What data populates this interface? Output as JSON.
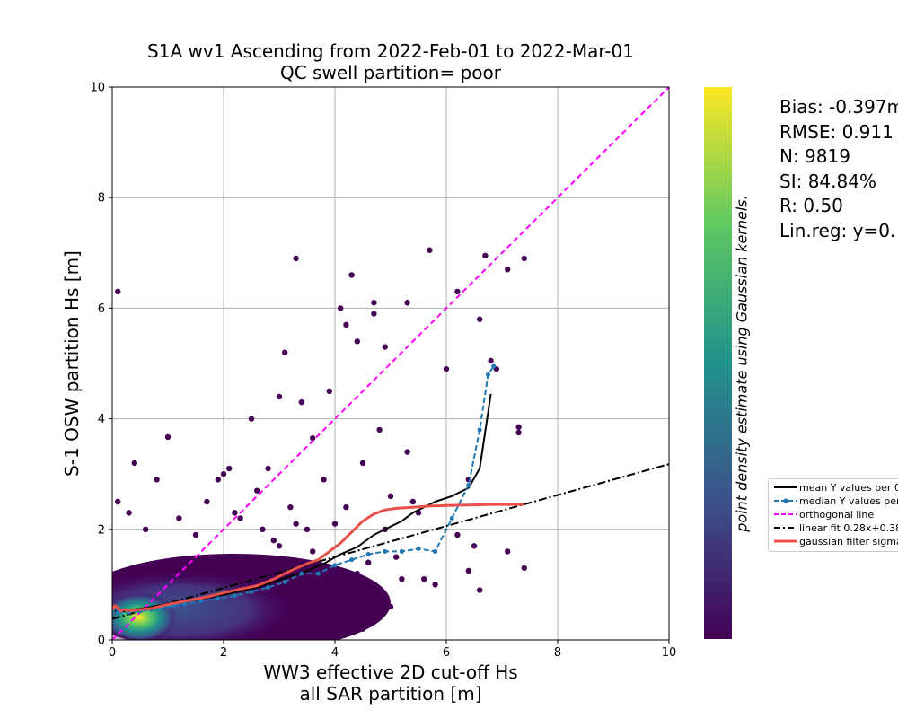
{
  "chart_data": {
    "type": "scatter",
    "title_lines": [
      "S1A wv1 Ascending from 2022-Feb-01 to 2022-Mar-01",
      "QC swell partition= poor"
    ],
    "xlabel_lines": [
      "WW3 effective 2D cut-off Hs",
      "all SAR partition [m]"
    ],
    "ylabel": "S-1 OSW partition Hs [m]",
    "xlim": [
      0,
      10
    ],
    "ylim": [
      0,
      10
    ],
    "xticks": [
      "0",
      "2",
      "4",
      "6",
      "8",
      "10"
    ],
    "yticks": [
      "0",
      "2",
      "4",
      "6",
      "8",
      "10"
    ],
    "grid": true,
    "colorbar_label": "point density estimate using Gaussian kernels.",
    "colormap": [
      "#440154",
      "#3b528b",
      "#21918c",
      "#5ec962",
      "#fde725"
    ],
    "stats": [
      "Bias: -0.397m",
      "RMSE: 0.911",
      "N: 9819",
      "SI: 84.84%",
      "R: 0.50",
      "Lin.reg: y=0."
    ],
    "legend_placement": "right, outside plot",
    "series": [
      {
        "name": "mean Y values per 0",
        "style": "solid",
        "color": "#000000",
        "x": [
          0.05,
          0.2,
          0.4,
          0.6,
          0.8,
          1.0,
          1.2,
          1.5,
          1.8,
          2.0,
          2.3,
          2.6,
          2.9,
          3.2,
          3.5,
          3.8,
          4.1,
          4.4,
          4.7,
          5.0,
          5.2,
          5.4,
          5.8,
          6.1,
          6.4,
          6.6,
          6.8
        ],
        "y": [
          0.52,
          0.52,
          0.55,
          0.58,
          0.62,
          0.65,
          0.68,
          0.73,
          0.78,
          0.82,
          0.88,
          0.95,
          1.05,
          1.15,
          1.25,
          1.38,
          1.55,
          1.68,
          1.9,
          2.05,
          2.15,
          2.3,
          2.5,
          2.6,
          2.75,
          3.1,
          4.45
        ]
      },
      {
        "name": "median Y values per",
        "style": "dashed-dot-markers",
        "color": "#1f77b4",
        "x": [
          0.1,
          0.3,
          0.5,
          0.7,
          0.9,
          1.1,
          1.3,
          1.6,
          1.9,
          2.2,
          2.5,
          2.8,
          3.1,
          3.4,
          3.7,
          4.0,
          4.3,
          4.6,
          4.9,
          5.2,
          5.5,
          5.8,
          6.1,
          6.4,
          6.6,
          6.75,
          6.85
        ],
        "y": [
          0.5,
          0.5,
          0.52,
          0.55,
          0.58,
          0.62,
          0.65,
          0.7,
          0.75,
          0.8,
          0.87,
          0.95,
          1.05,
          1.2,
          1.2,
          1.35,
          1.45,
          1.55,
          1.6,
          1.6,
          1.65,
          1.6,
          2.2,
          2.8,
          3.8,
          4.8,
          4.95
        ]
      },
      {
        "name": "orthogonal line",
        "style": "dashed",
        "color": "#ff00ff",
        "x": [
          0,
          10
        ],
        "y": [
          0,
          10
        ]
      },
      {
        "name": "linear fit 0.28x+0.38",
        "style": "dashdot",
        "color": "#000000",
        "x": [
          0,
          10
        ],
        "y": [
          0.38,
          3.18
        ]
      },
      {
        "name": "gaussian filter sigma",
        "style": "solid-thick",
        "color": "#e8504a",
        "x": [
          0.0,
          0.05,
          0.1,
          0.15,
          0.2,
          0.3,
          0.5,
          0.7,
          0.9,
          1.1,
          1.4,
          1.7,
          2.0,
          2.3,
          2.6,
          2.9,
          3.2,
          3.5,
          3.7,
          3.9,
          4.1,
          4.3,
          4.5,
          4.7,
          4.9,
          5.1,
          5.4,
          5.7,
          6.0,
          6.4,
          6.8,
          7.1,
          7.4
        ],
        "y": [
          0.55,
          0.62,
          0.58,
          0.52,
          0.55,
          0.53,
          0.55,
          0.57,
          0.62,
          0.66,
          0.72,
          0.78,
          0.85,
          0.92,
          0.98,
          1.1,
          1.25,
          1.38,
          1.45,
          1.6,
          1.75,
          1.95,
          2.15,
          2.28,
          2.35,
          2.38,
          2.4,
          2.42,
          2.43,
          2.44,
          2.45,
          2.45,
          2.45
        ]
      }
    ],
    "scatter_points": {
      "name": "points",
      "color": "#440154",
      "x": [
        0.1,
        1.0,
        3.3,
        4.3,
        4.1,
        4.2,
        4.7,
        4.4,
        4.7,
        4.9,
        5.3,
        5.7,
        6.7,
        6.8,
        7.4,
        6.2,
        6.6,
        6.0,
        6.9,
        7.1,
        7.3,
        7.3,
        6.4,
        6.4,
        5.8,
        5.3,
        5.4,
        4.9,
        5.0,
        4.0,
        4.5,
        3.1,
        3.4,
        3.0,
        3.6,
        2.5,
        2.8,
        2.0,
        2.1,
        1.9,
        0.4,
        0.1,
        0.3,
        0.8,
        3.9,
        4.8,
        5.6,
        6.6,
        7.1,
        7.4,
        6.5,
        6.2,
        5.5,
        5.0,
        4.5,
        3.2,
        2.6,
        3.8,
        4.0,
        4.2,
        3.5,
        2.9,
        2.3,
        1.7,
        1.2,
        0.6,
        1.5,
        2.2,
        2.7,
        3.0,
        3.3,
        3.6,
        4.4,
        4.7,
        5.1,
        5.2,
        4.6,
        3.9,
        4.3,
        4.8
      ],
      "y": [
        6.3,
        3.67,
        6.9,
        6.6,
        6.0,
        5.7,
        6.1,
        5.4,
        5.9,
        5.3,
        6.1,
        7.05,
        6.95,
        5.05,
        6.9,
        6.3,
        5.8,
        4.9,
        4.9,
        6.7,
        3.85,
        3.75,
        2.9,
        1.25,
        1.0,
        3.4,
        2.5,
        2.0,
        0.6,
        0.1,
        0.2,
        5.2,
        4.3,
        4.4,
        3.65,
        4.0,
        3.1,
        3.0,
        3.1,
        2.9,
        3.2,
        2.5,
        2.3,
        2.9,
        4.5,
        3.8,
        1.1,
        0.9,
        1.6,
        1.3,
        1.7,
        1.9,
        2.3,
        2.6,
        3.2,
        2.4,
        2.7,
        2.9,
        2.1,
        2.4,
        2.0,
        1.8,
        2.2,
        2.5,
        2.2,
        2.0,
        1.9,
        2.3,
        2.0,
        1.7,
        2.1,
        1.6,
        1.2,
        0.8,
        1.5,
        1.1,
        1.4,
        0.5,
        0.3,
        0.9
      ]
    }
  }
}
